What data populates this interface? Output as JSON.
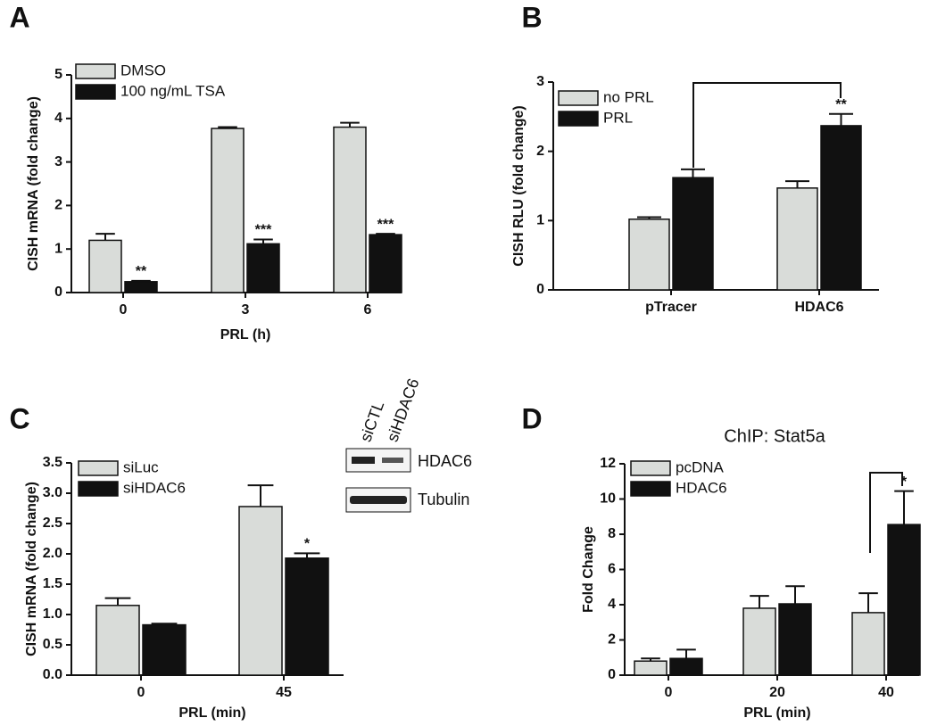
{
  "chart_data": [
    {
      "type": "bar",
      "panel": "A",
      "xlabel": "PRL (h)",
      "ylabel": "CISH mRNA (fold change)",
      "categories": [
        "0",
        "3",
        "6"
      ],
      "ylim": [
        0,
        5
      ],
      "yticks": [
        0,
        1,
        2,
        3,
        4,
        5
      ],
      "series": [
        {
          "name": "DMSO",
          "color": "#d9dcd9",
          "values": [
            1.2,
            3.77,
            3.8
          ],
          "errors": [
            0.15,
            0.03,
            0.1
          ]
        },
        {
          "name": "100 ng/mL TSA",
          "color": "#111111",
          "values": [
            0.25,
            1.12,
            1.33
          ],
          "errors": [
            0.02,
            0.1,
            0.02
          ],
          "significance": [
            "**",
            "***",
            "***"
          ]
        }
      ]
    },
    {
      "type": "bar",
      "panel": "B",
      "ylabel": "CISH RLU (fold change)",
      "categories": [
        "pTracer",
        "HDAC6"
      ],
      "ylim": [
        0,
        3
      ],
      "yticks": [
        0,
        1,
        2,
        3
      ],
      "series": [
        {
          "name": "no PRL",
          "color": "#d9dcd9",
          "values": [
            1.02,
            1.47
          ],
          "errors": [
            0.03,
            0.1
          ]
        },
        {
          "name": "PRL",
          "color": "#111111",
          "values": [
            1.62,
            2.37
          ],
          "errors": [
            0.12,
            0.17
          ],
          "significance": [
            null,
            "**"
          ]
        }
      ]
    },
    {
      "type": "bar",
      "panel": "C",
      "xlabel": "PRL (min)",
      "ylabel": "CISH mRNA (fold change)",
      "categories": [
        "0",
        "45"
      ],
      "ylim": [
        0,
        3.5
      ],
      "yticks": [
        {
          "value": 0,
          "label": "0.0"
        },
        {
          "value": 0.5,
          "label": "0.5"
        },
        {
          "value": 1,
          "label": "1.0"
        },
        {
          "value": 1.5,
          "label": "1.5"
        },
        {
          "value": 2,
          "label": "2.0"
        },
        {
          "value": 2.5,
          "label": "2.5"
        },
        {
          "value": 3,
          "label": "3.0"
        },
        {
          "value": 3.5,
          "label": "3.5"
        }
      ],
      "series": [
        {
          "name": "siLuc",
          "color": "#d9dcd9",
          "values": [
            1.15,
            2.78
          ],
          "errors": [
            0.12,
            0.35
          ]
        },
        {
          "name": "siHDAC6",
          "color": "#111111",
          "values": [
            0.83,
            1.93
          ],
          "errors": [
            0.02,
            0.08
          ],
          "significance": [
            null,
            "*"
          ]
        }
      ],
      "inset": {
        "lanes": [
          "siCTL",
          "siHDAC6"
        ],
        "bands": [
          "HDAC6",
          "Tubulin"
        ]
      }
    },
    {
      "type": "bar",
      "panel": "D",
      "title": "ChIP: Stat5a",
      "xlabel": "PRL (min)",
      "ylabel": "Fold Change",
      "categories": [
        "0",
        "20",
        "40"
      ],
      "ylim": [
        0,
        12
      ],
      "yticks": [
        0,
        2,
        4,
        6,
        8,
        10,
        12
      ],
      "series": [
        {
          "name": "pcDNA",
          "color": "#d9dcd9",
          "values": [
            0.8,
            3.8,
            3.55
          ],
          "errors": [
            0.15,
            0.7,
            1.1
          ]
        },
        {
          "name": "HDAC6",
          "color": "#111111",
          "values": [
            0.95,
            4.05,
            8.55
          ],
          "errors": [
            0.5,
            1.0,
            1.9
          ],
          "significance": [
            null,
            null,
            "*"
          ]
        }
      ]
    }
  ]
}
